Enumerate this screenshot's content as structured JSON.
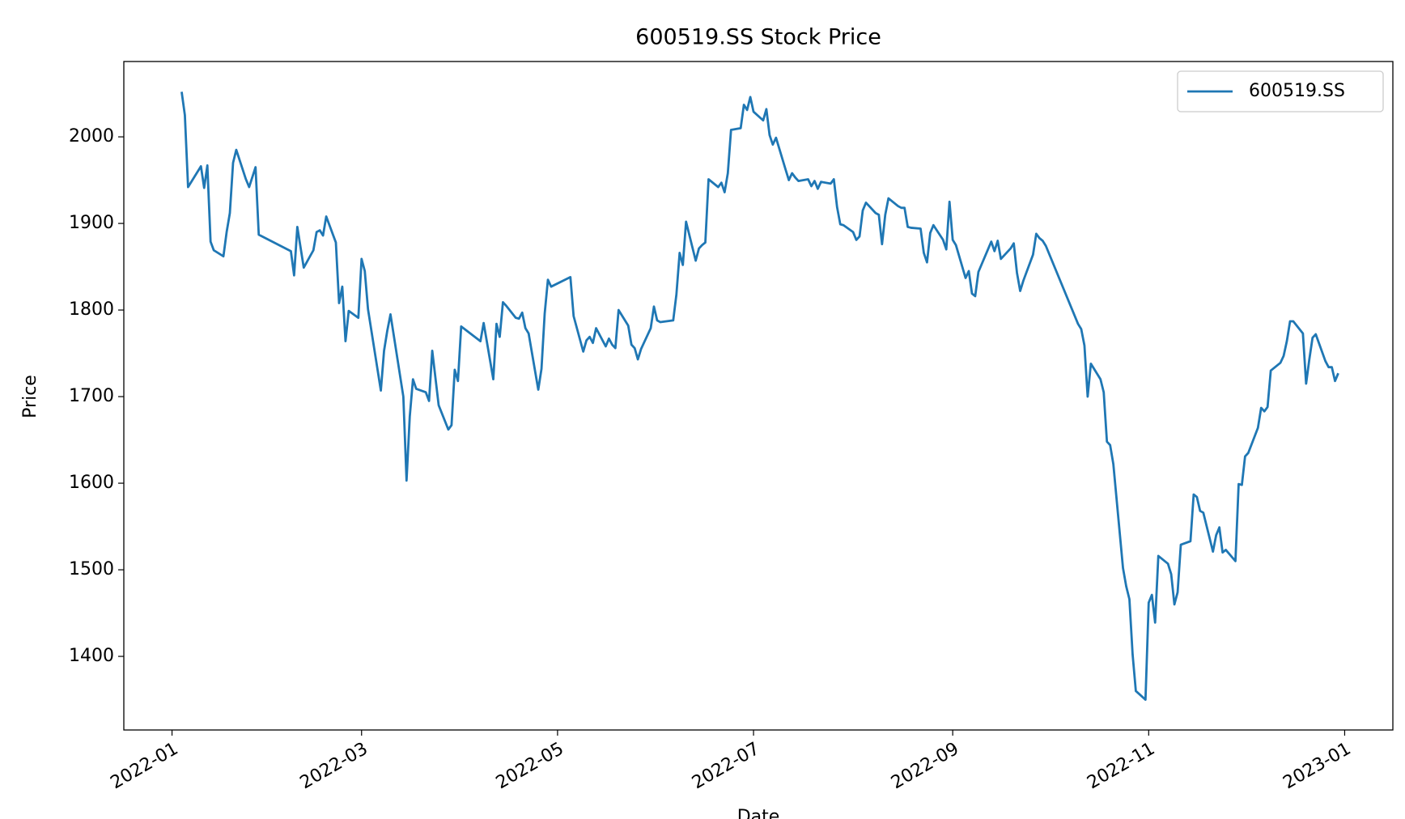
{
  "chart_data": {
    "type": "line",
    "title": "600519.SS Stock Price",
    "xlabel": "Date",
    "ylabel": "Price",
    "x": [
      "2022-01-04",
      "2022-01-05",
      "2022-01-06",
      "2022-01-10",
      "2022-01-11",
      "2022-01-12",
      "2022-01-13",
      "2022-01-14",
      "2022-01-17",
      "2022-01-18",
      "2022-01-19",
      "2022-01-20",
      "2022-01-21",
      "2022-01-24",
      "2022-01-25",
      "2022-01-27",
      "2022-01-28",
      "2022-02-07",
      "2022-02-08",
      "2022-02-09",
      "2022-02-11",
      "2022-02-14",
      "2022-02-15",
      "2022-02-16",
      "2022-02-17",
      "2022-02-18",
      "2022-02-21",
      "2022-02-22",
      "2022-02-23",
      "2022-02-24",
      "2022-02-25",
      "2022-02-28",
      "2022-03-01",
      "2022-03-02",
      "2022-03-03",
      "2022-03-07",
      "2022-03-08",
      "2022-03-09",
      "2022-03-10",
      "2022-03-14",
      "2022-03-15",
      "2022-03-16",
      "2022-03-17",
      "2022-03-18",
      "2022-03-21",
      "2022-03-22",
      "2022-03-23",
      "2022-03-25",
      "2022-03-28",
      "2022-03-29",
      "2022-03-30",
      "2022-03-31",
      "2022-04-01",
      "2022-04-07",
      "2022-04-08",
      "2022-04-11",
      "2022-04-12",
      "2022-04-13",
      "2022-04-14",
      "2022-04-15",
      "2022-04-18",
      "2022-04-19",
      "2022-04-20",
      "2022-04-21",
      "2022-04-22",
      "2022-04-25",
      "2022-04-26",
      "2022-04-27",
      "2022-04-28",
      "2022-04-29",
      "2022-05-05",
      "2022-05-06",
      "2022-05-09",
      "2022-05-10",
      "2022-05-11",
      "2022-05-12",
      "2022-05-13",
      "2022-05-16",
      "2022-05-17",
      "2022-05-18",
      "2022-05-19",
      "2022-05-20",
      "2022-05-23",
      "2022-05-24",
      "2022-05-25",
      "2022-05-26",
      "2022-05-27",
      "2022-05-30",
      "2022-05-31",
      "2022-06-01",
      "2022-06-02",
      "2022-06-06",
      "2022-06-07",
      "2022-06-08",
      "2022-06-09",
      "2022-06-10",
      "2022-06-13",
      "2022-06-14",
      "2022-06-15",
      "2022-06-16",
      "2022-06-17",
      "2022-06-20",
      "2022-06-21",
      "2022-06-22",
      "2022-06-23",
      "2022-06-24",
      "2022-06-27",
      "2022-06-28",
      "2022-06-29",
      "2022-06-30",
      "2022-07-01",
      "2022-07-04",
      "2022-07-05",
      "2022-07-06",
      "2022-07-07",
      "2022-07-08",
      "2022-07-11",
      "2022-07-12",
      "2022-07-13",
      "2022-07-14",
      "2022-07-15",
      "2022-07-18",
      "2022-07-19",
      "2022-07-20",
      "2022-07-21",
      "2022-07-22",
      "2022-07-25",
      "2022-07-26",
      "2022-07-27",
      "2022-07-28",
      "2022-07-29",
      "2022-08-01",
      "2022-08-02",
      "2022-08-03",
      "2022-08-04",
      "2022-08-05",
      "2022-08-08",
      "2022-08-09",
      "2022-08-10",
      "2022-08-11",
      "2022-08-12",
      "2022-08-15",
      "2022-08-16",
      "2022-08-17",
      "2022-08-18",
      "2022-08-19",
      "2022-08-22",
      "2022-08-23",
      "2022-08-24",
      "2022-08-25",
      "2022-08-26",
      "2022-08-29",
      "2022-08-30",
      "2022-08-31",
      "2022-09-01",
      "2022-09-02",
      "2022-09-05",
      "2022-09-06",
      "2022-09-07",
      "2022-09-08",
      "2022-09-09",
      "2022-09-13",
      "2022-09-14",
      "2022-09-15",
      "2022-09-16",
      "2022-09-19",
      "2022-09-20",
      "2022-09-21",
      "2022-09-22",
      "2022-09-23",
      "2022-09-26",
      "2022-09-27",
      "2022-09-28",
      "2022-09-29",
      "2022-09-30",
      "2022-10-10",
      "2022-10-11",
      "2022-10-12",
      "2022-10-13",
      "2022-10-14",
      "2022-10-17",
      "2022-10-18",
      "2022-10-19",
      "2022-10-20",
      "2022-10-21",
      "2022-10-24",
      "2022-10-25",
      "2022-10-26",
      "2022-10-27",
      "2022-10-28",
      "2022-10-31",
      "2022-11-01",
      "2022-11-02",
      "2022-11-03",
      "2022-11-04",
      "2022-11-07",
      "2022-11-08",
      "2022-11-09",
      "2022-11-10",
      "2022-11-11",
      "2022-11-14",
      "2022-11-15",
      "2022-11-16",
      "2022-11-17",
      "2022-11-18",
      "2022-11-21",
      "2022-11-22",
      "2022-11-23",
      "2022-11-24",
      "2022-11-25",
      "2022-11-28",
      "2022-11-29",
      "2022-11-30",
      "2022-12-01",
      "2022-12-02",
      "2022-12-05",
      "2022-12-06",
      "2022-12-07",
      "2022-12-08",
      "2022-12-09",
      "2022-12-12",
      "2022-12-13",
      "2022-12-14",
      "2022-12-15",
      "2022-12-16",
      "2022-12-19",
      "2022-12-20",
      "2022-12-21",
      "2022-12-22",
      "2022-12-23",
      "2022-12-26",
      "2022-12-27",
      "2022-12-28",
      "2022-12-29",
      "2022-12-30"
    ],
    "series": [
      {
        "name": "600519.SS",
        "color": "#1f77b4",
        "values": [
          2052,
          2025,
          1942,
          1966,
          1941,
          1967,
          1879,
          1869,
          1862,
          1890,
          1912,
          1970,
          1985,
          1951,
          1942,
          1965,
          1887,
          1868,
          1840,
          1896,
          1849,
          1869,
          1890,
          1892,
          1886,
          1908,
          1878,
          1808,
          1827,
          1764,
          1799,
          1791,
          1859,
          1845,
          1801,
          1707,
          1753,
          1776,
          1795,
          1700,
          1603,
          1677,
          1720,
          1709,
          1705,
          1695,
          1753,
          1690,
          1662,
          1667,
          1731,
          1718,
          1781,
          1764,
          1785,
          1720,
          1784,
          1769,
          1809,
          1805,
          1791,
          1790,
          1797,
          1779,
          1773,
          1708,
          1732,
          1796,
          1835,
          1827,
          1838,
          1793,
          1752,
          1765,
          1769,
          1762,
          1779,
          1758,
          1767,
          1760,
          1756,
          1800,
          1782,
          1760,
          1756,
          1743,
          1755,
          1779,
          1804,
          1788,
          1786,
          1788,
          1818,
          1866,
          1852,
          1902,
          1857,
          1871,
          1875,
          1878,
          1951,
          1942,
          1947,
          1936,
          1958,
          2008,
          2010,
          2037,
          2031,
          2046,
          2029,
          2019,
          2032,
          2002,
          1991,
          1999,
          1962,
          1950,
          1958,
          1953,
          1949,
          1951,
          1943,
          1949,
          1940,
          1948,
          1946,
          1951,
          1919,
          1899,
          1898,
          1890,
          1881,
          1885,
          1915,
          1924,
          1912,
          1910,
          1876,
          1910,
          1929,
          1920,
          1918,
          1918,
          1896,
          1895,
          1894,
          1866,
          1855,
          1889,
          1898,
          1881,
          1870,
          1925,
          1881,
          1875,
          1837,
          1845,
          1819,
          1816,
          1844,
          1879,
          1868,
          1880,
          1859,
          1871,
          1877,
          1843,
          1822,
          1834,
          1864,
          1888,
          1883,
          1880,
          1874,
          1784,
          1778,
          1759,
          1700,
          1738,
          1720,
          1705,
          1648,
          1644,
          1622,
          1502,
          1481,
          1466,
          1402,
          1360,
          1350,
          1462,
          1471,
          1439,
          1516,
          1507,
          1495,
          1460,
          1474,
          1529,
          1533,
          1587,
          1584,
          1568,
          1566,
          1521,
          1540,
          1549,
          1520,
          1523,
          1510,
          1599,
          1598,
          1631,
          1635,
          1664,
          1687,
          1683,
          1688,
          1730,
          1739,
          1747,
          1764,
          1787,
          1787,
          1773,
          1715,
          1743,
          1768,
          1772,
          1741,
          1734,
          1734,
          1718,
          1727
        ]
      }
    ],
    "xlim": [
      "2021-12-17",
      "2023-01-16"
    ],
    "xticks": [
      "2022-01",
      "2022-03",
      "2022-05",
      "2022-07",
      "2022-09",
      "2022-11",
      "2023-01"
    ],
    "ylim": [
      1315,
      2087
    ],
    "yticks": [
      1400,
      1500,
      1600,
      1700,
      1800,
      1900,
      2000
    ],
    "grid": false,
    "legend": "upper right"
  }
}
